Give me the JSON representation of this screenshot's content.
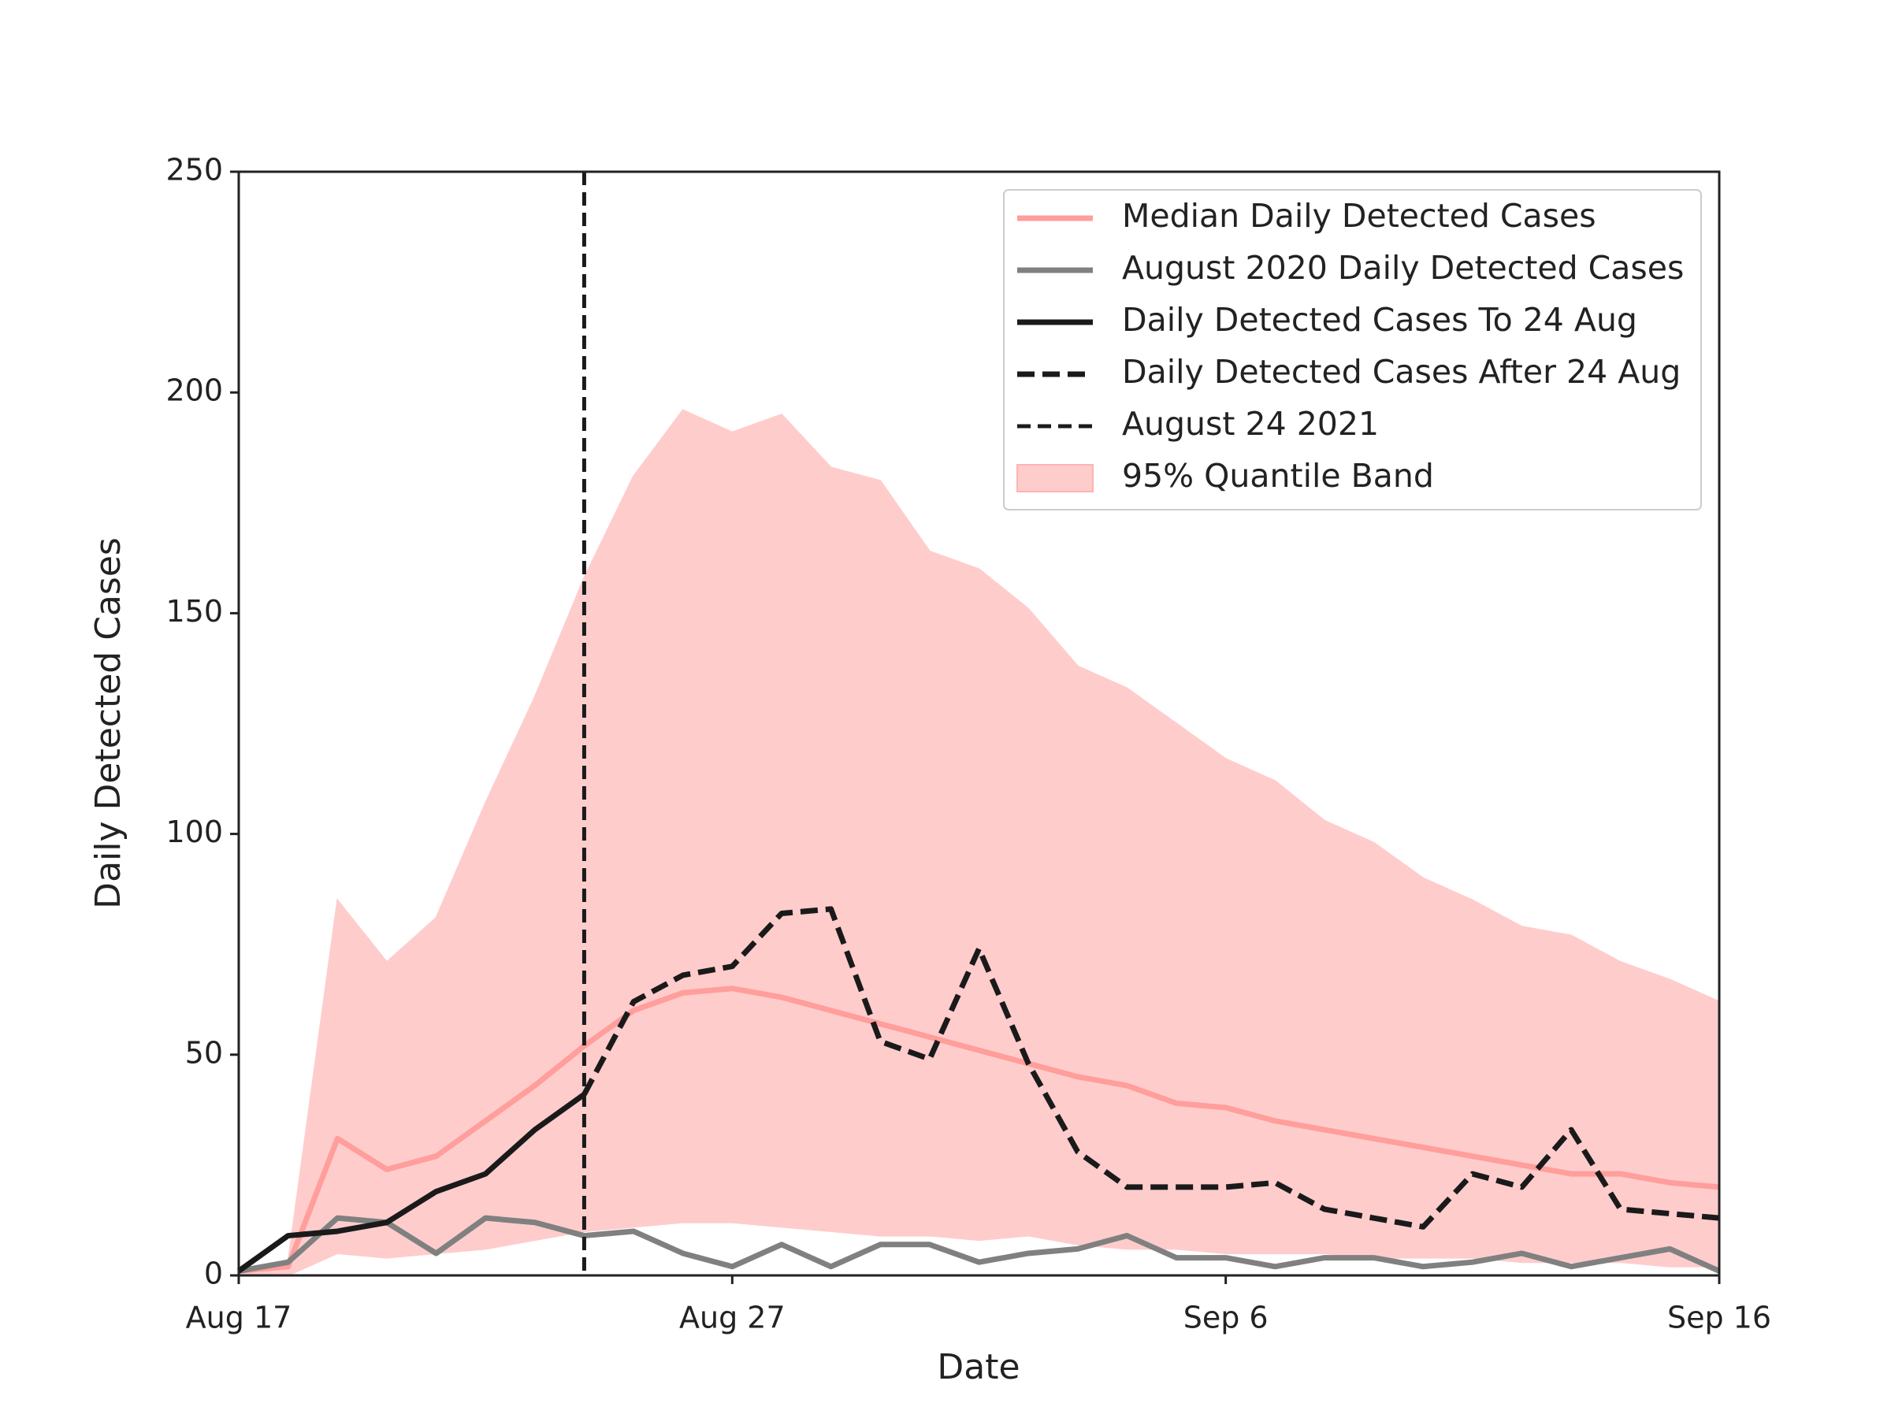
{
  "chart_data": {
    "type": "line",
    "xlabel": "Date",
    "ylabel": "Daily Detected Cases",
    "x": [
      "Aug 17",
      "Aug 18",
      "Aug 19",
      "Aug 20",
      "Aug 21",
      "Aug 22",
      "Aug 23",
      "Aug 24",
      "Aug 25",
      "Aug 26",
      "Aug 27",
      "Aug 28",
      "Aug 29",
      "Aug 30",
      "Aug 31",
      "Sep 1",
      "Sep 2",
      "Sep 3",
      "Sep 4",
      "Sep 5",
      "Sep 6",
      "Sep 7",
      "Sep 8",
      "Sep 9",
      "Sep 10",
      "Sep 11",
      "Sep 12",
      "Sep 13",
      "Sep 14",
      "Sep 15",
      "Sep 16"
    ],
    "xlim": [
      "Aug 17",
      "Sep 16"
    ],
    "xticks": [
      "Aug 17",
      "Aug 27",
      "Sep 6",
      "Sep 16"
    ],
    "ylim": [
      0,
      250
    ],
    "yticks": [
      0,
      50,
      100,
      150,
      200,
      250
    ],
    "legend": "upper right",
    "series": [
      {
        "name": "Median Daily Detected Cases",
        "color": "#ff9e9b",
        "linestyle": "solid",
        "values": [
          1,
          2,
          31,
          24,
          27,
          35,
          43,
          52,
          60,
          64,
          65,
          63,
          60,
          57,
          54,
          51,
          48,
          45,
          43,
          39,
          38,
          35,
          33,
          31,
          29,
          27,
          25,
          23,
          23,
          21,
          20
        ]
      },
      {
        "name": "August 2020 Daily Detected Cases",
        "color": "#808080",
        "linestyle": "solid",
        "values": [
          1,
          3,
          13,
          12,
          5,
          13,
          12,
          9,
          10,
          5,
          2,
          7,
          2,
          7,
          7,
          3,
          5,
          6,
          9,
          4,
          4,
          2,
          4,
          4,
          2,
          3,
          5,
          2,
          4,
          6,
          1
        ]
      },
      {
        "name": "Daily Detected Cases To 24 Aug",
        "color": "#1a1a1a",
        "linestyle": "solid",
        "values": [
          1,
          9,
          10,
          12,
          19,
          23,
          33,
          41,
          null,
          null,
          null,
          null,
          null,
          null,
          null,
          null,
          null,
          null,
          null,
          null,
          null,
          null,
          null,
          null,
          null,
          null,
          null,
          null,
          null,
          null,
          null
        ]
      },
      {
        "name": "Daily Detected Cases After 24 Aug",
        "color": "#1a1a1a",
        "linestyle": "dashed",
        "values": [
          null,
          null,
          null,
          null,
          null,
          null,
          null,
          41,
          62,
          68,
          70,
          82,
          83,
          53,
          49,
          74,
          48,
          28,
          20,
          20,
          20,
          21,
          15,
          13,
          11,
          23,
          20,
          33,
          15,
          14,
          13
        ]
      }
    ],
    "vline": {
      "x": "Aug 24",
      "label": "August 24 2021",
      "color": "#1a1a1a",
      "linestyle": "dashed"
    },
    "band": {
      "name": "95% Quantile Band",
      "color": "#ffcccc",
      "upper": [
        1,
        3,
        85,
        71,
        81,
        107,
        131,
        158,
        181,
        196,
        191,
        195,
        183,
        180,
        164,
        160,
        151,
        138,
        133,
        125,
        117,
        112,
        103,
        98,
        90,
        85,
        79,
        77,
        71,
        67,
        62
      ],
      "lower": [
        0,
        0,
        5,
        4,
        5,
        6,
        8,
        10,
        11,
        12,
        12,
        11,
        10,
        9,
        9,
        8,
        9,
        7,
        6,
        6,
        5,
        5,
        5,
        4,
        4,
        4,
        3,
        3,
        3,
        2,
        2
      ]
    }
  }
}
